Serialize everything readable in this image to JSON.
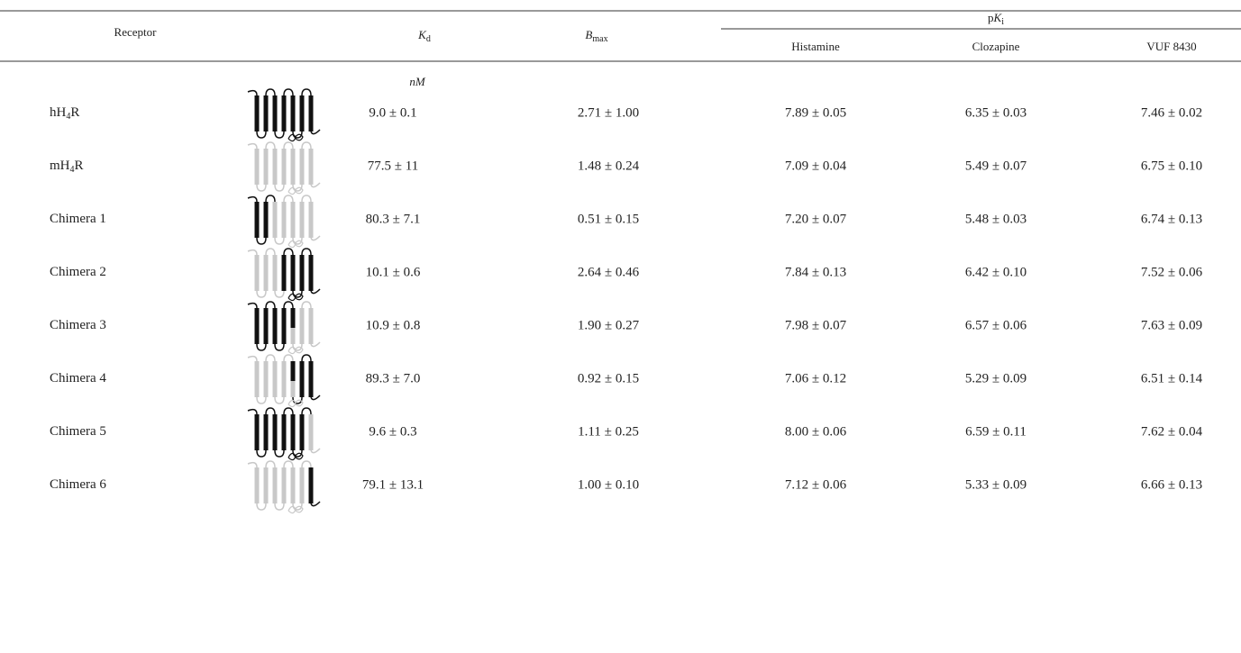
{
  "table": {
    "header": {
      "receptor": "Receptor",
      "kd": [
        "K",
        "d"
      ],
      "bmax": [
        "B",
        "max"
      ],
      "pki": [
        "p",
        "K",
        "i"
      ],
      "histamine": "Histamine",
      "clozapine": "Clozapine",
      "vuf": "VUF 8430"
    },
    "units": "nM",
    "rows": [
      {
        "name": [
          "hH",
          "4",
          "R"
        ],
        "kd": "9.0 ± 0.1",
        "bmax": "2.71 ± 1.00",
        "histamine": "7.89 ± 0.05",
        "clozapine": "6.35 ± 0.03",
        "vuf": "7.46 ± 0.02"
      },
      {
        "name": [
          "mH",
          "4",
          "R"
        ],
        "kd": "77.5 ± 11",
        "bmax": "1.48 ± 0.24",
        "histamine": "7.09 ± 0.04",
        "clozapine": "5.49 ± 0.07",
        "vuf": "6.75 ± 0.10"
      },
      {
        "name": [
          "Chimera 1"
        ],
        "kd": "80.3 ± 7.1",
        "bmax": "0.51 ± 0.15",
        "histamine": "7.20 ± 0.07",
        "clozapine": "5.48 ± 0.03",
        "vuf": "6.74 ± 0.13"
      },
      {
        "name": [
          "Chimera 2"
        ],
        "kd": "10.1 ± 0.6",
        "bmax": "2.64 ± 0.46",
        "histamine": "7.84 ± 0.13",
        "clozapine": "6.42 ± 0.10",
        "vuf": "7.52 ± 0.06"
      },
      {
        "name": [
          "Chimera 3"
        ],
        "kd": "10.9 ± 0.8",
        "bmax": "1.90 ± 0.27",
        "histamine": "7.98 ± 0.07",
        "clozapine": "6.57 ± 0.06",
        "vuf": "7.63 ± 0.09"
      },
      {
        "name": [
          "Chimera 4"
        ],
        "kd": "89.3 ± 7.0",
        "bmax": "0.92 ± 0.15",
        "histamine": "7.06 ± 0.12",
        "clozapine": "5.29 ± 0.09",
        "vuf": "6.51 ± 0.14"
      },
      {
        "name": [
          "Chimera 5"
        ],
        "kd": "9.6 ± 0.3",
        "bmax": "1.11 ± 0.25",
        "histamine": "8.00 ± 0.06",
        "clozapine": "6.59 ± 0.11",
        "vuf": "7.62 ± 0.04"
      },
      {
        "name": [
          "Chimera 6"
        ],
        "kd": "79.1 ± 13.1",
        "bmax": "1.00 ± 0.10",
        "histamine": "7.12 ± 0.06",
        "clozapine": "5.33 ± 0.09",
        "vuf": "6.66 ± 0.13"
      }
    ]
  }
}
